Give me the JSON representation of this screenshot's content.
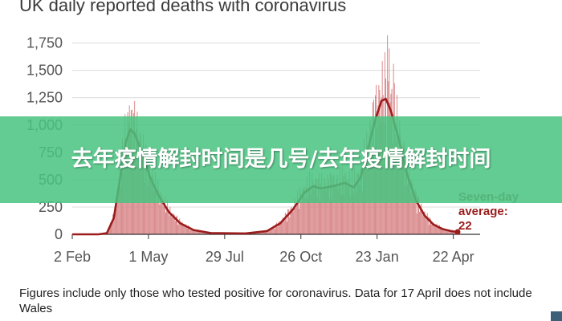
{
  "chart_data": {
    "type": "bar",
    "title": "UK daily reported deaths with coronavirus",
    "y_ticks": [
      0,
      250,
      500,
      750,
      1000,
      1250,
      1500,
      1750
    ],
    "y_tick_labels": [
      "0",
      "250",
      "500",
      "750",
      "1,000",
      "1,250",
      "1,500",
      "1,750"
    ],
    "ylim": [
      0,
      1850
    ],
    "x_ticks": [
      "2 Feb",
      "1 May",
      "29 Jul",
      "26 Oct",
      "23 Jan",
      "22 Apr"
    ],
    "grid": true,
    "bar_color": "#d9888a",
    "average_color": "#9b1c1c",
    "annotation": {
      "lines": [
        "Seven-day",
        "average:",
        "22"
      ],
      "line_colors": [
        "#9b5757",
        "#9b1c1c",
        "#9b1c1c"
      ],
      "value": 22
    },
    "series": [
      {
        "name": "Seven-day average",
        "type": "line",
        "points": [
          {
            "x": 0,
            "y": 0
          },
          {
            "x": 30,
            "y": 0
          },
          {
            "x": 40,
            "y": 10
          },
          {
            "x": 48,
            "y": 150
          },
          {
            "x": 55,
            "y": 500
          },
          {
            "x": 62,
            "y": 850
          },
          {
            "x": 67,
            "y": 960
          },
          {
            "x": 72,
            "y": 920
          },
          {
            "x": 80,
            "y": 760
          },
          {
            "x": 90,
            "y": 520
          },
          {
            "x": 100,
            "y": 350
          },
          {
            "x": 112,
            "y": 200
          },
          {
            "x": 125,
            "y": 100
          },
          {
            "x": 140,
            "y": 40
          },
          {
            "x": 160,
            "y": 12
          },
          {
            "x": 200,
            "y": 8
          },
          {
            "x": 225,
            "y": 30
          },
          {
            "x": 240,
            "y": 100
          },
          {
            "x": 255,
            "y": 230
          },
          {
            "x": 268,
            "y": 380
          },
          {
            "x": 278,
            "y": 440
          },
          {
            "x": 287,
            "y": 420
          },
          {
            "x": 300,
            "y": 440
          },
          {
            "x": 315,
            "y": 470
          },
          {
            "x": 325,
            "y": 430
          },
          {
            "x": 333,
            "y": 520
          },
          {
            "x": 342,
            "y": 800
          },
          {
            "x": 350,
            "y": 1050
          },
          {
            "x": 357,
            "y": 1220
          },
          {
            "x": 362,
            "y": 1240
          },
          {
            "x": 368,
            "y": 1130
          },
          {
            "x": 377,
            "y": 870
          },
          {
            "x": 387,
            "y": 540
          },
          {
            "x": 397,
            "y": 310
          },
          {
            "x": 407,
            "y": 170
          },
          {
            "x": 417,
            "y": 90
          },
          {
            "x": 427,
            "y": 50
          },
          {
            "x": 437,
            "y": 30
          },
          {
            "x": 445,
            "y": 22
          }
        ]
      },
      {
        "name": "Daily deaths",
        "type": "bar",
        "peaks": [
          {
            "x": 66,
            "y": 1180
          },
          {
            "x": 72,
            "y": 1220
          },
          {
            "x": 364,
            "y": 1820
          },
          {
            "x": 366,
            "y": 1700
          },
          {
            "x": 371,
            "y": 1560
          }
        ]
      }
    ]
  },
  "footnote": "Figures include only those who tested positive for coronavirus. Data for 17 April does not include Wales",
  "overlay": {
    "text": "去年疫情解封时间是几号/去年疫情解封时间"
  }
}
